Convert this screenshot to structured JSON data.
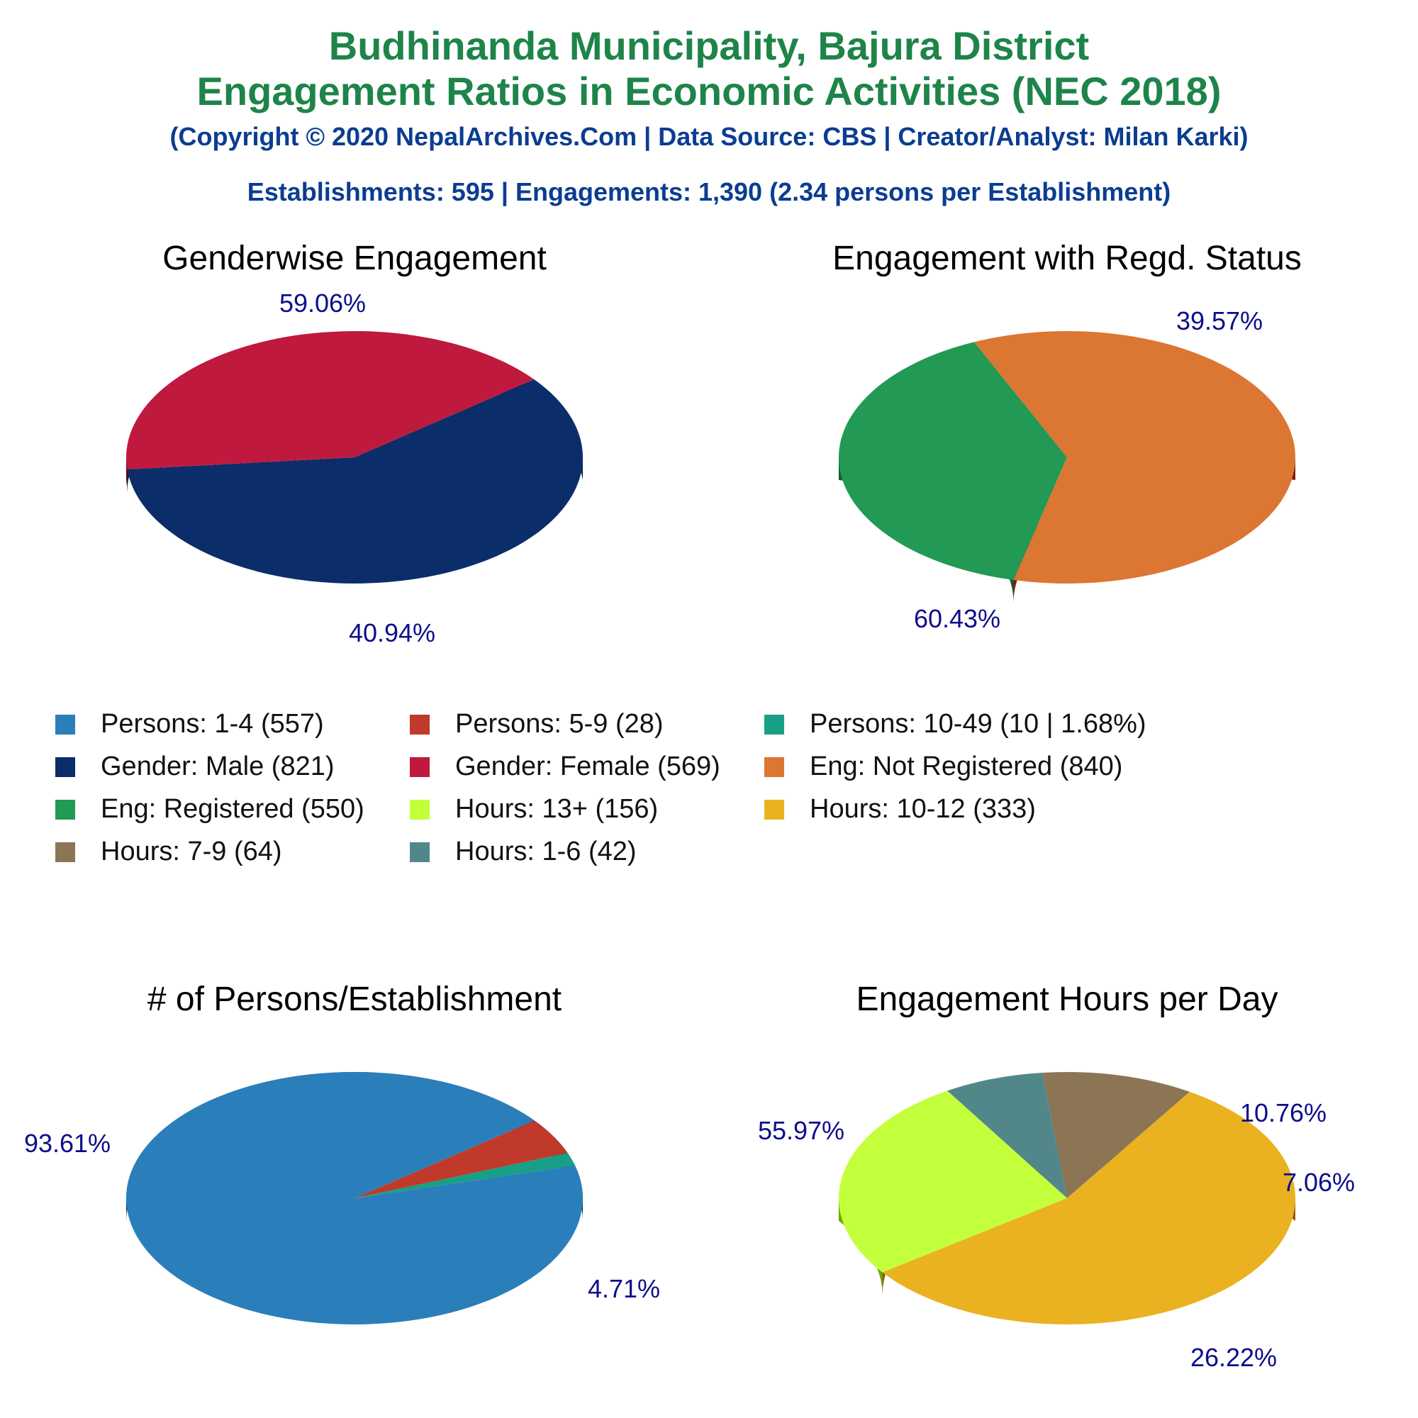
{
  "header": {
    "title_line1": "Budhinanda Municipality, Bajura District",
    "title_line2": "Engagement Ratios in Economic Activities (NEC 2018)",
    "subtitle": "(Copyright © 2020 NepalArchives.Com | Data Source: CBS | Creator/Analyst: Milan Karki)",
    "summary": "Establishments: 595 | Engagements: 1,390 (2.34 persons per Establishment)"
  },
  "colors": {
    "title": "#1e8449",
    "subtitle": "#0b3d91",
    "pct_label": "#0d0d8c"
  },
  "legend": [
    {
      "label": "Persons: 1-4 (557)",
      "color": "#2a7fba"
    },
    {
      "label": "Persons: 5-9 (28)",
      "color": "#c0392b"
    },
    {
      "label": "Persons: 10-49 (10 | 1.68%)",
      "color": "#17a085"
    },
    {
      "label": "Gender: Male (821)",
      "color": "#0b2d69"
    },
    {
      "label": "Gender: Female (569)",
      "color": "#c0193e"
    },
    {
      "label": "Eng: Not Registered (840)",
      "color": "#dc7633"
    },
    {
      "label": "Eng: Registered (550)",
      "color": "#229954"
    },
    {
      "label": "Hours: 13+ (156)",
      "color": "#c4ff3c"
    },
    {
      "label": "Hours: 10-12 (333)",
      "color": "#eab220"
    },
    {
      "label": "Hours: 7-9 (64)",
      "color": "#8b7555"
    },
    {
      "label": "Hours: 1-6 (42)",
      "color": "#528789"
    }
  ],
  "chart_data": [
    {
      "type": "pie",
      "title": "Genderwise Engagement",
      "slices": [
        {
          "name": "Gender: Male",
          "value": 821,
          "pct_label": "59.06%",
          "color": "#0b2d69",
          "side": "#0a1f4d"
        },
        {
          "name": "Gender: Female",
          "value": 569,
          "pct_label": "40.94%",
          "color": "#c0193e",
          "side": "#6b0000"
        }
      ]
    },
    {
      "type": "pie",
      "title": "Engagement with Regd. Status",
      "slices": [
        {
          "name": "Eng: Registered",
          "value": 550,
          "pct_label": "39.57%",
          "color": "#229954",
          "side": "#145a32"
        },
        {
          "name": "Eng: Not Registered",
          "value": 840,
          "pct_label": "60.43%",
          "color": "#dc7633",
          "side": "#7b1c00"
        }
      ]
    },
    {
      "type": "pie",
      "title": "# of Persons/Establishment",
      "slices": [
        {
          "name": "Persons: 10-49",
          "value": 10,
          "pct_label": "",
          "color": "#17a085",
          "side": "#0b5345"
        },
        {
          "name": "Persons: 5-9",
          "value": 28,
          "pct_label": "4.71%",
          "color": "#c0392b",
          "side": "#6b0000"
        },
        {
          "name": "Persons: 1-4",
          "value": 557,
          "pct_label": "93.61%",
          "color": "#2a7fba",
          "side": "#00235e"
        }
      ]
    },
    {
      "type": "pie",
      "title": "Engagement Hours per Day",
      "slices": [
        {
          "name": "Hours: 7-9",
          "value": 64,
          "pct_label": "10.76%",
          "color": "#8b7555",
          "side": "#5a4a35"
        },
        {
          "name": "Hours: 1-6",
          "value": 42,
          "pct_label": "7.06%",
          "color": "#528789",
          "side": "#2e5556"
        },
        {
          "name": "Hours: 13+",
          "value": 156,
          "pct_label": "26.22%",
          "color": "#c4ff3c",
          "side": "#6aa800"
        },
        {
          "name": "Hours: 10-12",
          "value": 333,
          "pct_label": "55.97%",
          "color": "#eab220",
          "side": "#935a00"
        }
      ]
    }
  ]
}
